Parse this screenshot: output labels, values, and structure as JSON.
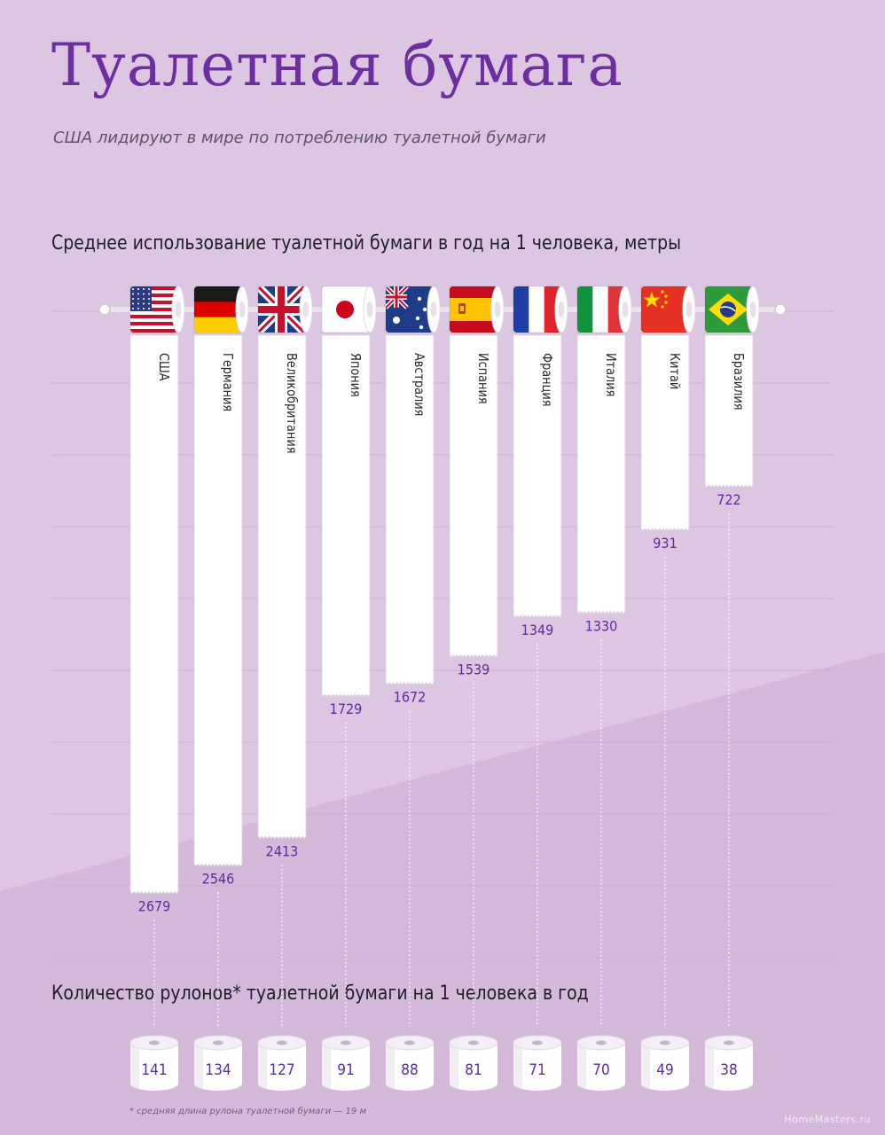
{
  "title": "Туалетная бумага",
  "subtitle": "США лидируют в мире по потреблению туалетной бумаги",
  "footnote": "* средняя длина рулона туалетной бумаги — 19 м",
  "watermark": "HomeMasters.ru",
  "colors": {
    "background": "#dcc6e2",
    "accent": "#6b2fa0",
    "value_text": "#5b2d9a",
    "paper": "#ffffff"
  },
  "chart_data": [
    {
      "type": "bar",
      "title": "Среднее использование туалетной бумаги в год на 1 человека, метры",
      "categories": [
        "США",
        "Германия",
        "Великобритания",
        "Япония",
        "Австралия",
        "Испания",
        "Франция",
        "Италия",
        "Китай",
        "Бразилия"
      ],
      "flag_icons": [
        "flag-usa-icon",
        "flag-germany-icon",
        "flag-uk-icon",
        "flag-japan-icon",
        "flag-australia-icon",
        "flag-spain-icon",
        "flag-france-icon",
        "flag-italy-icon",
        "flag-china-icon",
        "flag-brazil-icon"
      ],
      "values": [
        2679,
        2546,
        2413,
        1729,
        1672,
        1539,
        1349,
        1330,
        931,
        722
      ],
      "labels": [
        "2679",
        "2546",
        "2413",
        "1729",
        "1672",
        "1539",
        "1349",
        "1330",
        "931",
        "722"
      ],
      "ylim": [
        0,
        2800
      ],
      "orientation": "downward",
      "grid": true
    },
    {
      "type": "table",
      "title": "Количество рулонов* туалетной бумаги на 1 человека в год",
      "categories": [
        "США",
        "Германия",
        "Великобритания",
        "Япония",
        "Австралия",
        "Испания",
        "Франция",
        "Италия",
        "Китай",
        "Бразилия"
      ],
      "values": [
        141,
        134,
        127,
        91,
        88,
        81,
        71,
        70,
        49,
        38
      ],
      "labels": [
        "141",
        "134",
        "127",
        "91",
        "88",
        "81",
        "71",
        "70",
        "49",
        "38"
      ]
    }
  ]
}
